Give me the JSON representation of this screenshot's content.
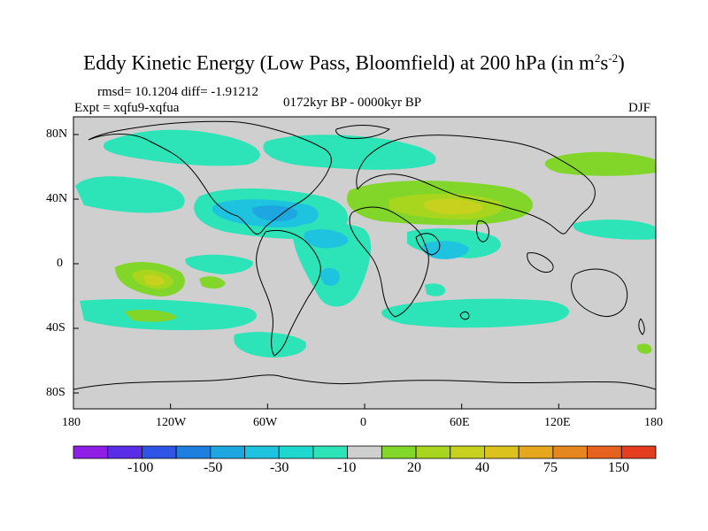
{
  "title": {
    "main": "Eddy Kinetic Energy (Low Pass, Bloomfield) at 200 hPa (in m",
    "sup1": "2",
    "mid": "s",
    "sup2": "-2",
    "close": ")"
  },
  "stats": "rmsd= 10.1204 diff= -1.91212",
  "experiment": "Expt = xqfu9-xqfua",
  "period": "0172kyr BP - 0000kyr BP",
  "season": "DJF",
  "axes": {
    "lat_ticks": [
      "80N",
      "40N",
      "0",
      "40S",
      "80S"
    ],
    "lon_ticks": [
      "180",
      "120W",
      "60W",
      "0",
      "60E",
      "120E",
      "180"
    ]
  },
  "colorbar": {
    "colors": [
      "#8f1fe6",
      "#5a2ee6",
      "#2e55e6",
      "#1e7fe0",
      "#1ea6e0",
      "#1ec3df",
      "#1ed8cf",
      "#2de3b8",
      "#cfcfcf",
      "#82d62a",
      "#a8d61e",
      "#c8d21e",
      "#dcc21e",
      "#e6a61e",
      "#e6861e",
      "#e6621e",
      "#e33c1e"
    ],
    "labels": [
      "-100",
      "-50",
      "-30",
      "-10",
      "20",
      "40",
      "75",
      "150"
    ]
  }
}
